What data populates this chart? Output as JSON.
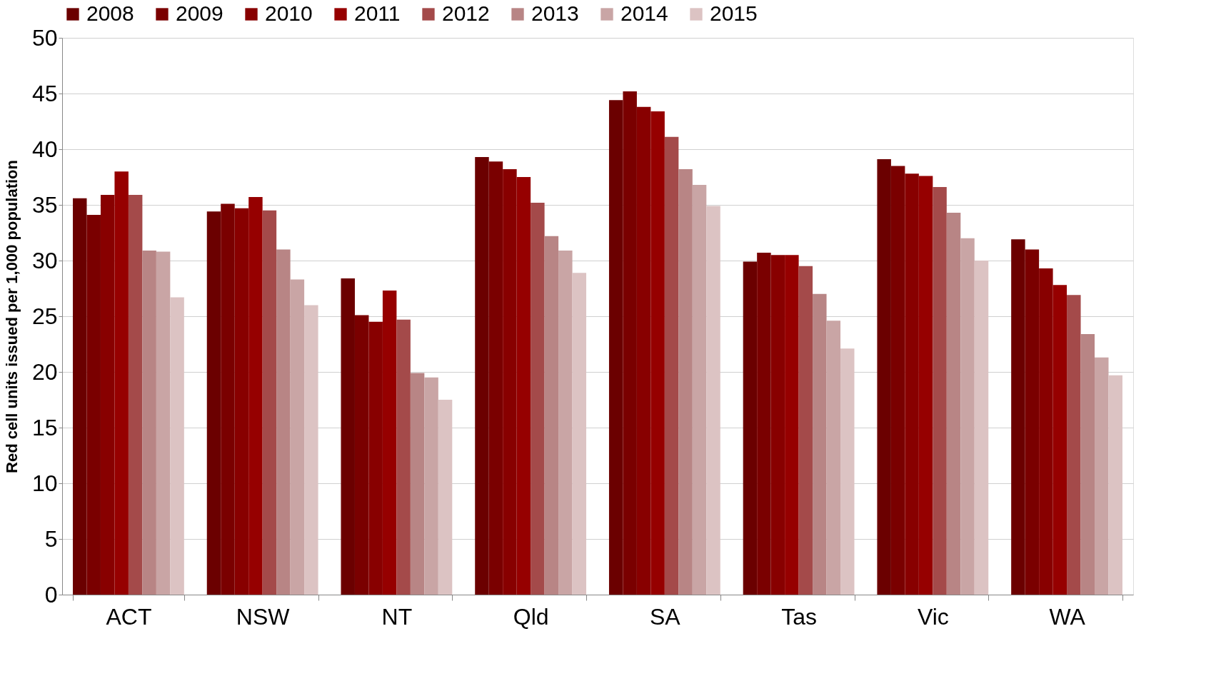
{
  "chart_data": {
    "type": "bar",
    "ylabel": "Red cell units issued per 1,000 population",
    "categories": [
      "ACT",
      "NSW",
      "NT",
      "Qld",
      "SA",
      "Tas",
      "Vic",
      "WA"
    ],
    "series": [
      {
        "name": "2008",
        "color": "#6b0000",
        "values": [
          35.6,
          34.4,
          28.4,
          39.3,
          44.4,
          29.9,
          39.1,
          31.9
        ]
      },
      {
        "name": "2009",
        "color": "#7a0000",
        "values": [
          34.1,
          35.1,
          25.1,
          38.9,
          45.2,
          30.7,
          38.5,
          31.0
        ]
      },
      {
        "name": "2010",
        "color": "#880000",
        "values": [
          35.9,
          34.7,
          24.5,
          38.2,
          43.8,
          30.5,
          37.8,
          29.3
        ]
      },
      {
        "name": "2011",
        "color": "#960000",
        "values": [
          38.0,
          35.7,
          27.3,
          37.5,
          43.4,
          30.5,
          37.6,
          27.8
        ]
      },
      {
        "name": "2012",
        "color": "#a44a4a",
        "values": [
          35.9,
          34.5,
          24.7,
          35.2,
          41.1,
          29.5,
          36.6,
          26.9
        ]
      },
      {
        "name": "2013",
        "color": "#b88585",
        "values": [
          30.9,
          31.0,
          19.9,
          32.2,
          38.2,
          27.0,
          34.3,
          23.4
        ]
      },
      {
        "name": "2014",
        "color": "#c9a5a5",
        "values": [
          30.8,
          28.3,
          19.5,
          30.9,
          36.8,
          24.6,
          32.0,
          21.3
        ]
      },
      {
        "name": "2015",
        "color": "#dcc3c3",
        "values": [
          26.7,
          26.0,
          17.5,
          28.9,
          34.9,
          22.1,
          30.0,
          19.7
        ]
      }
    ],
    "ylim": [
      0,
      50
    ],
    "yticks": [
      0,
      5,
      10,
      15,
      20,
      25,
      30,
      35,
      40,
      45,
      50
    ],
    "grid": "y",
    "legend": "top"
  }
}
